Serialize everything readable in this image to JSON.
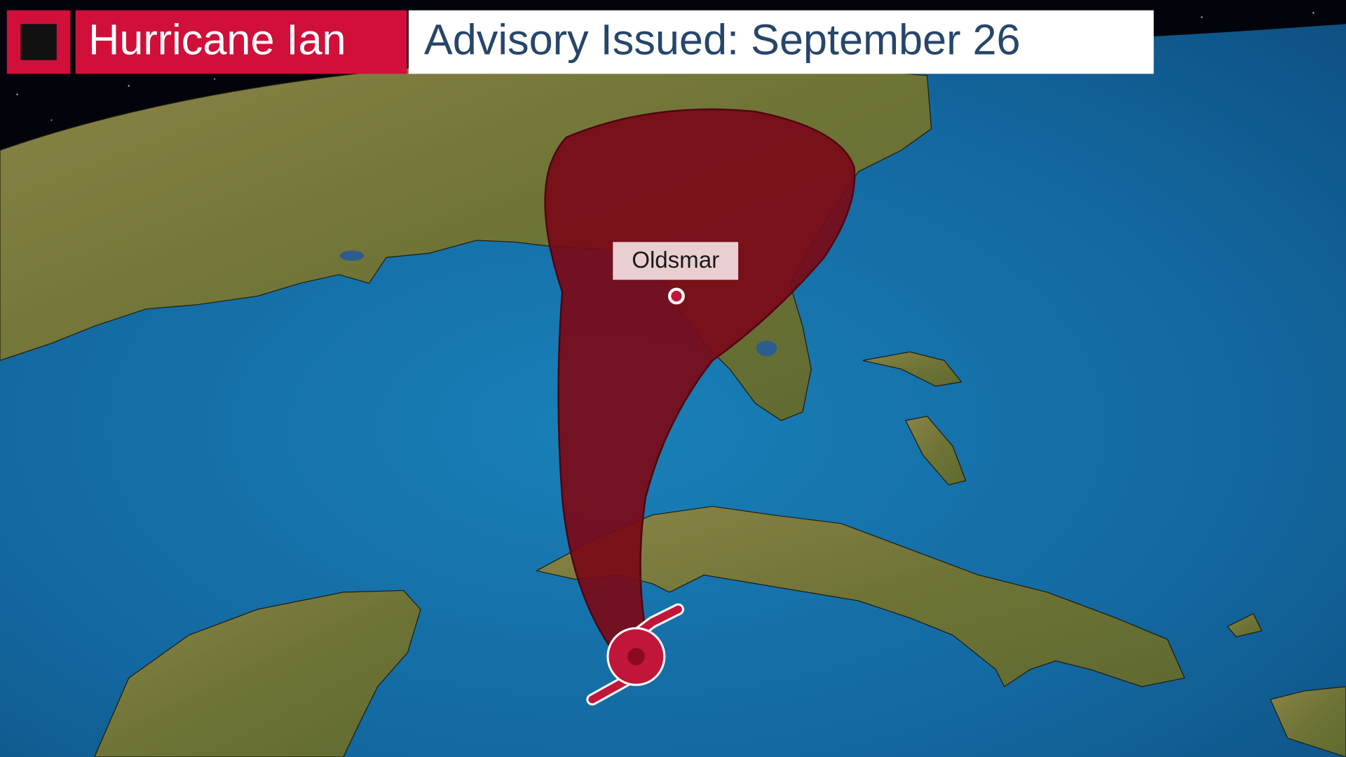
{
  "header": {
    "storm": "Hurricane Ian",
    "advisory": "Advisory Issued: September 26"
  },
  "map": {
    "labels": [
      {
        "name": "Oldsmar"
      }
    ]
  }
}
